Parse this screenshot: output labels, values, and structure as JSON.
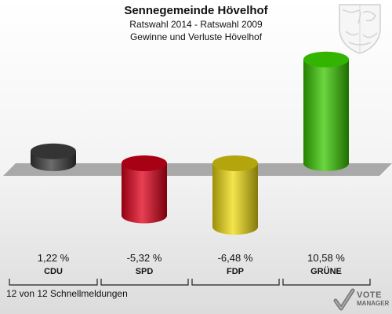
{
  "title": "Sennegemeinde Hövelhof",
  "subtitle1": "Ratswahl 2014 - Ratswahl 2009",
  "subtitle2": "Gewinne und Verluste Hövelhof",
  "footer": "12 von 12 Schnellmeldungen",
  "logo": {
    "line1": "VOTE",
    "line2": "MANAGER"
  },
  "chart_data": {
    "type": "bar",
    "categories": [
      "CDU",
      "SPD",
      "FDP",
      "GRÜNE"
    ],
    "values": [
      1.22,
      -5.32,
      -6.48,
      10.58
    ],
    "value_labels": [
      "1,22 %",
      "-5,32 %",
      "-6,48 %",
      "10,58 %"
    ],
    "colors": [
      "#3a3a3a",
      "#e0001a",
      "#f0dc10",
      "#38c800"
    ],
    "ylim": [
      -7,
      11
    ]
  }
}
